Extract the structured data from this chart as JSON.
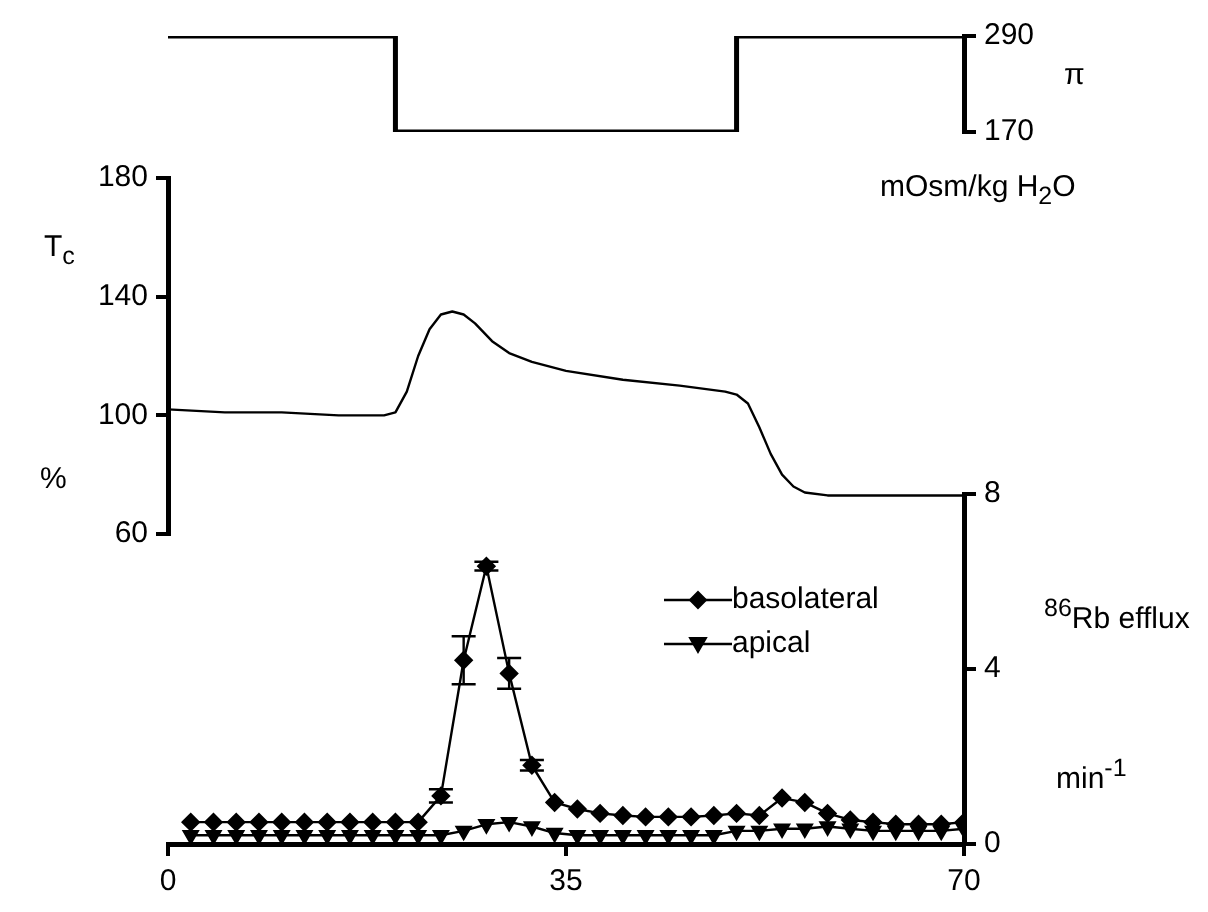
{
  "chart_data": [
    {
      "type": "step",
      "x": [
        0,
        20,
        50,
        70
      ],
      "values": [
        290,
        170,
        290,
        290
      ],
      "color": "#000000",
      "marker": "none",
      "xlim": [
        0,
        70
      ],
      "ylim": [
        170,
        290
      ],
      "yticks": [
        170,
        290
      ],
      "ylabel": "π",
      "annotations": [
        "mOsm/kg H$_{2}$O"
      ],
      "tick_labels": "y"
    },
    {
      "type": "line",
      "x": [
        0,
        5,
        10,
        15,
        19,
        20,
        21,
        22,
        23,
        24,
        25,
        26,
        27,
        28.5,
        30,
        32,
        35,
        40,
        45,
        49,
        50,
        51,
        52,
        53,
        54,
        55,
        56,
        58,
        62,
        66,
        70
      ],
      "values": [
        102,
        101,
        101,
        100,
        100,
        101,
        108,
        120,
        129,
        134,
        135,
        134,
        131,
        125,
        121,
        118,
        115,
        112,
        110,
        108,
        107,
        104,
        96,
        87,
        80,
        76,
        74,
        73,
        73,
        73,
        73
      ],
      "color": "#000000",
      "marker": "none",
      "xlim": [
        0,
        70
      ],
      "ylim": [
        60,
        180
      ],
      "yticks": [
        60,
        100,
        140,
        180
      ],
      "ylabel": "T$_{c}$",
      "annotations": [
        "%"
      ],
      "tick_labels": "y"
    },
    {
      "type": "line",
      "x": [
        2,
        4,
        6,
        8,
        10,
        12,
        14,
        16,
        18,
        20,
        22,
        24,
        26,
        28,
        30,
        32,
        34,
        36,
        38,
        40,
        42,
        44,
        46,
        48,
        50,
        52,
        54,
        56,
        58,
        60,
        62,
        64,
        66,
        68,
        70
      ],
      "series": [
        {
          "name": "basolateral",
          "color": "#000000",
          "marker": "diamond",
          "values": [
            0.5,
            0.5,
            0.5,
            0.5,
            0.5,
            0.5,
            0.5,
            0.5,
            0.5,
            0.5,
            0.5,
            1.1,
            4.2,
            6.35,
            3.9,
            1.8,
            0.95,
            0.8,
            0.7,
            0.65,
            0.62,
            0.62,
            0.62,
            0.65,
            0.7,
            0.65,
            1.05,
            0.95,
            0.7,
            0.55,
            0.5,
            0.45,
            0.45,
            0.45,
            0.5
          ],
          "errors": [
            null,
            null,
            null,
            null,
            null,
            null,
            null,
            null,
            null,
            null,
            null,
            0.15,
            0.55,
            0.1,
            0.35,
            0.12,
            null,
            null,
            null,
            null,
            null,
            null,
            null,
            null,
            null,
            null,
            null,
            null,
            null,
            null,
            null,
            null,
            null,
            null,
            null
          ]
        },
        {
          "name": "apical",
          "color": "#000000",
          "marker": "triangle",
          "values": [
            0.2,
            0.2,
            0.2,
            0.2,
            0.2,
            0.2,
            0.2,
            0.2,
            0.2,
            0.2,
            0.2,
            0.2,
            0.3,
            0.45,
            0.5,
            0.4,
            0.25,
            0.2,
            0.2,
            0.2,
            0.2,
            0.2,
            0.2,
            0.2,
            0.3,
            0.3,
            0.35,
            0.35,
            0.4,
            0.35,
            0.3,
            0.3,
            0.3,
            0.3,
            0.35
          ]
        }
      ],
      "xlim": [
        0,
        70
      ],
      "xticks": [
        0,
        35,
        70
      ],
      "ylim": [
        0,
        8
      ],
      "yticks": [
        0,
        4,
        8
      ],
      "ylabel": "$^{86}$Rb efflux",
      "annotations": [
        "min$^{-1}$"
      ],
      "legend": "top right"
    }
  ]
}
